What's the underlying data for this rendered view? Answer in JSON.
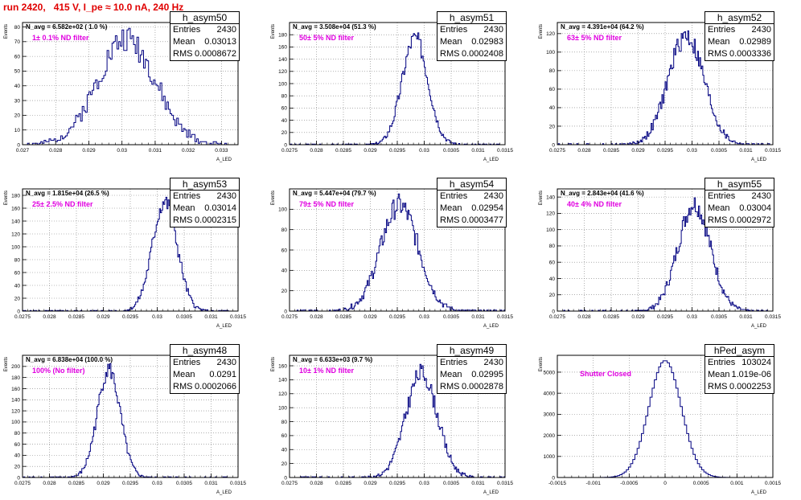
{
  "run_title": "run 2420,   415 V, I_pe ≈ 10.0 nA, 240 Hz",
  "colors": {
    "title": "#e00000",
    "annotation": "#e000e0",
    "histogram": "#000080",
    "grid": "#7f7f7f"
  },
  "stat_labels": {
    "entries": "Entries",
    "mean": "Mean",
    "rms": "RMS"
  },
  "common": {
    "xlabel": "A_LED",
    "ylabel": "Events"
  },
  "chart_data": [
    {
      "type": "histogram",
      "name": "h_asym50",
      "entries": "2430",
      "mean": "0.03013",
      "rms": "0.0008672",
      "n_avg": "N_avg = 6.582e+02 ( 1.0 %)",
      "filter": "1± 0.1% ND filter",
      "xlim": [
        0.027,
        0.0335
      ],
      "ylim": [
        0,
        83
      ],
      "xticks": [
        0.027,
        0.028,
        0.029,
        0.03,
        0.031,
        0.032,
        0.033
      ],
      "xtick_labels": [
        "0.027",
        "0.028",
        "0.029",
        "0.03",
        "0.031",
        "0.032",
        "0.033"
      ],
      "yticks": [
        0,
        10,
        20,
        30,
        40,
        50,
        60,
        70,
        80
      ],
      "curve": {
        "mean": 0.03013,
        "sigma": 0.00087,
        "peak": 72,
        "binw": 5e-05,
        "seed": 1
      }
    },
    {
      "type": "histogram",
      "name": "h_asym51",
      "entries": "2430",
      "mean": "0.02983",
      "rms": "0.0002408",
      "n_avg": "N_avg = 3.508e+04 (51.3 %)",
      "filter": "50± 5% ND filter",
      "xlim": [
        0.0275,
        0.0315
      ],
      "ylim": [
        0,
        200
      ],
      "xticks": [
        0.0275,
        0.028,
        0.0285,
        0.029,
        0.0295,
        0.03,
        0.0305,
        0.031,
        0.0315
      ],
      "xtick_labels": [
        "0.0275",
        "0.028",
        "0.0285",
        "0.029",
        "0.0295",
        "0.03",
        "0.0305",
        "0.031",
        "0.0315"
      ],
      "yticks": [
        0,
        20,
        40,
        60,
        80,
        100,
        120,
        140,
        160,
        180
      ],
      "curve": {
        "mean": 0.02983,
        "sigma": 0.00024,
        "peak": 175,
        "binw": 2e-05,
        "seed": 2
      }
    },
    {
      "type": "histogram",
      "name": "h_asym52",
      "entries": "2430",
      "mean": "0.02989",
      "rms": "0.0003336",
      "n_avg": "N_avg = 4.391e+04 (64.2 %)",
      "filter": "63± 5% ND filter",
      "xlim": [
        0.0275,
        0.0315
      ],
      "ylim": [
        0,
        132
      ],
      "xticks": [
        0.0275,
        0.028,
        0.0285,
        0.029,
        0.0295,
        0.03,
        0.0305,
        0.031,
        0.0315
      ],
      "xtick_labels": [
        "0.0275",
        "0.028",
        "0.0285",
        "0.029",
        "0.0295",
        "0.03",
        "0.0305",
        "0.031",
        "0.0315"
      ],
      "yticks": [
        0,
        20,
        40,
        60,
        80,
        100,
        120
      ],
      "curve": {
        "mean": 0.02989,
        "sigma": 0.00033,
        "peak": 118,
        "binw": 2e-05,
        "seed": 3
      }
    },
    {
      "type": "histogram",
      "name": "h_asym53",
      "entries": "2430",
      "mean": "0.03014",
      "rms": "0.0002315",
      "n_avg": "N_avg = 1.815e+04 (26.5 %)",
      "filter": "25± 2.5% ND filter",
      "xlim": [
        0.0275,
        0.0315
      ],
      "ylim": [
        0,
        190
      ],
      "xticks": [
        0.0275,
        0.028,
        0.0285,
        0.029,
        0.0295,
        0.03,
        0.0305,
        0.031,
        0.0315
      ],
      "xtick_labels": [
        "0.0275",
        "0.028",
        "0.0285",
        "0.029",
        "0.0295",
        "0.03",
        "0.0305",
        "0.031",
        "0.0315"
      ],
      "yticks": [
        0,
        20,
        40,
        60,
        80,
        100,
        120,
        140,
        160,
        180
      ],
      "curve": {
        "mean": 0.03014,
        "sigma": 0.00023,
        "peak": 170,
        "binw": 2e-05,
        "seed": 4
      }
    },
    {
      "type": "histogram",
      "name": "h_asym54",
      "entries": "2430",
      "mean": "0.02954",
      "rms": "0.0003477",
      "n_avg": "N_avg = 5.447e+04 (79.7 %)",
      "filter": "79± 5% ND filter",
      "xlim": [
        0.0275,
        0.0315
      ],
      "ylim": [
        0,
        120
      ],
      "xticks": [
        0.0275,
        0.028,
        0.0285,
        0.029,
        0.0295,
        0.03,
        0.0305,
        0.031,
        0.0315
      ],
      "xtick_labels": [
        "0.0275",
        "0.028",
        "0.0285",
        "0.029",
        "0.0295",
        "0.03",
        "0.0305",
        "0.031",
        "0.0315"
      ],
      "yticks": [
        0,
        20,
        40,
        60,
        80,
        100
      ],
      "curve": {
        "mean": 0.02954,
        "sigma": 0.00035,
        "peak": 104,
        "binw": 2e-05,
        "seed": 5
      }
    },
    {
      "type": "histogram",
      "name": "h_asym55",
      "entries": "2430",
      "mean": "0.03004",
      "rms": "0.0002972",
      "n_avg": "N_avg = 2.843e+04 (41.6 %)",
      "filter": "40± 4% ND filter",
      "xlim": [
        0.0275,
        0.0315
      ],
      "ylim": [
        0,
        150
      ],
      "xticks": [
        0.0275,
        0.028,
        0.0285,
        0.029,
        0.0295,
        0.03,
        0.0305,
        0.031,
        0.0315
      ],
      "xtick_labels": [
        "0.0275",
        "0.028",
        "0.0285",
        "0.029",
        "0.0295",
        "0.03",
        "0.0305",
        "0.031",
        "0.0315"
      ],
      "yticks": [
        0,
        20,
        40,
        60,
        80,
        100,
        120,
        140
      ],
      "curve": {
        "mean": 0.03004,
        "sigma": 0.0003,
        "peak": 132,
        "binw": 2e-05,
        "seed": 6
      }
    },
    {
      "type": "histogram",
      "name": "h_asym48",
      "entries": "2430",
      "mean": "0.0291",
      "rms": "0.0002066",
      "n_avg": "N_avg = 6.838e+04 (100.0 %)",
      "filter": "100% (No filter)",
      "xlim": [
        0.0275,
        0.0315
      ],
      "ylim": [
        0,
        220
      ],
      "xticks": [
        0.0275,
        0.028,
        0.0285,
        0.029,
        0.0295,
        0.03,
        0.0305,
        0.031,
        0.0315
      ],
      "xtick_labels": [
        "0.0275",
        "0.028",
        "0.0285",
        "0.029",
        "0.0295",
        "0.03",
        "0.0305",
        "0.031",
        "0.0315"
      ],
      "yticks": [
        0,
        20,
        40,
        60,
        80,
        100,
        120,
        140,
        160,
        180,
        200
      ],
      "curve": {
        "mean": 0.0291,
        "sigma": 0.00021,
        "peak": 195,
        "binw": 2e-05,
        "seed": 7
      }
    },
    {
      "type": "histogram",
      "name": "h_asym49",
      "entries": "2430",
      "mean": "0.02995",
      "rms": "0.0002878",
      "n_avg": "N_avg = 6.633e+03 (9.7 %)",
      "filter": "10± 1% ND filter",
      "xlim": [
        0.0275,
        0.0315
      ],
      "ylim": [
        0,
        175
      ],
      "xticks": [
        0.0275,
        0.028,
        0.0285,
        0.029,
        0.0295,
        0.03,
        0.0305,
        0.031,
        0.0315
      ],
      "xtick_labels": [
        "0.0275",
        "0.028",
        "0.0285",
        "0.029",
        "0.0295",
        "0.03",
        "0.0305",
        "0.031",
        "0.0315"
      ],
      "yticks": [
        0,
        20,
        40,
        60,
        80,
        100,
        120,
        140,
        160
      ],
      "curve": {
        "mean": 0.02995,
        "sigma": 0.00029,
        "peak": 150,
        "binw": 2e-05,
        "seed": 8
      }
    },
    {
      "type": "histogram",
      "name": "hPed_asym",
      "entries": "103024",
      "mean": "1.019e-06",
      "rms": "0.0002253",
      "n_avg": "",
      "filter": "Shutter Closed",
      "xlim": [
        -0.0015,
        0.0015
      ],
      "ylim": [
        0,
        5800
      ],
      "xticks": [
        -0.0015,
        -0.001,
        -0.0005,
        0,
        0.0005,
        0.001,
        0.0015
      ],
      "xtick_labels": [
        "-0.0015",
        "-0.001",
        "-0.0005",
        "0",
        "0.0005",
        "0.001",
        "0.0015"
      ],
      "yticks": [
        0,
        1000,
        2000,
        3000,
        4000,
        5000
      ],
      "curve": {
        "mean": 0.0,
        "sigma": 0.000225,
        "peak": 5550,
        "binw": 3e-05,
        "seed": 0
      }
    }
  ]
}
